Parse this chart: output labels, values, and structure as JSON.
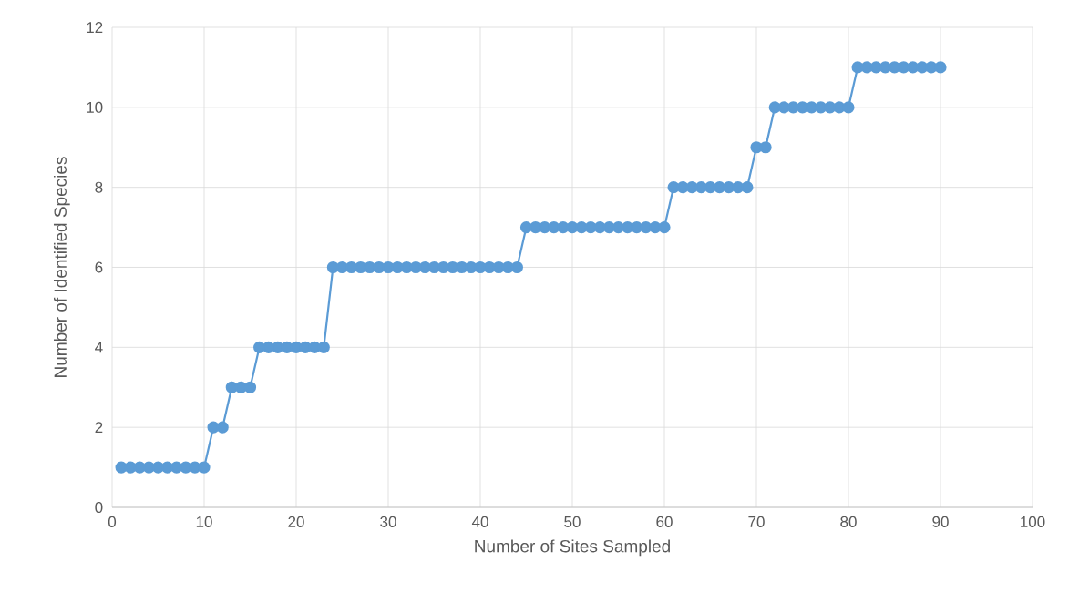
{
  "chart_data": {
    "type": "line",
    "xlabel": "Number of Sites Sampled",
    "ylabel": "Number of Identified Species",
    "x": [
      1,
      2,
      3,
      4,
      5,
      6,
      7,
      8,
      9,
      10,
      11,
      12,
      13,
      14,
      15,
      16,
      17,
      18,
      19,
      20,
      21,
      22,
      23,
      24,
      25,
      26,
      27,
      28,
      29,
      30,
      31,
      32,
      33,
      34,
      35,
      36,
      37,
      38,
      39,
      40,
      41,
      42,
      43,
      44,
      45,
      46,
      47,
      48,
      49,
      50,
      51,
      52,
      53,
      54,
      55,
      56,
      57,
      58,
      59,
      60,
      61,
      62,
      63,
      64,
      65,
      66,
      67,
      68,
      69,
      70,
      71,
      72,
      73,
      74,
      75,
      76,
      77,
      78,
      79,
      80,
      81,
      82,
      83,
      84,
      85,
      86,
      87,
      88,
      89,
      90
    ],
    "series": [
      {
        "color": "#5b9bd5",
        "values": [
          1,
          1,
          1,
          1,
          1,
          1,
          1,
          1,
          1,
          1,
          2,
          2,
          3,
          3,
          3,
          4,
          4,
          4,
          4,
          4,
          4,
          4,
          4,
          6,
          6,
          6,
          6,
          6,
          6,
          6,
          6,
          6,
          6,
          6,
          6,
          6,
          6,
          6,
          6,
          6,
          6,
          6,
          6,
          6,
          7,
          7,
          7,
          7,
          7,
          7,
          7,
          7,
          7,
          7,
          7,
          7,
          7,
          7,
          7,
          7,
          8,
          8,
          8,
          8,
          8,
          8,
          8,
          8,
          8,
          9,
          9,
          10,
          10,
          10,
          10,
          10,
          10,
          10,
          10,
          10,
          11,
          11,
          11,
          11,
          11,
          11,
          11,
          11,
          11,
          11
        ]
      }
    ],
    "xlim": [
      0,
      100
    ],
    "xticks": [
      0,
      10,
      20,
      30,
      40,
      50,
      60,
      70,
      80,
      90,
      100
    ],
    "ylim": [
      0,
      12
    ],
    "yticks": [
      0,
      2,
      4,
      6,
      8,
      10,
      12
    ],
    "grid": true,
    "marker": "circle",
    "line_style": "solid"
  }
}
